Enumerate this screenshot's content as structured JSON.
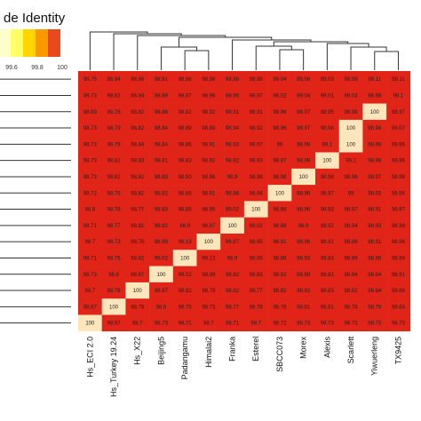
{
  "legend": {
    "title": "de Identity",
    "ticks": [
      "99.6",
      "99.8",
      "100"
    ],
    "colors": [
      "#ffffcc",
      "#ffff66",
      "#ffd500",
      "#f79a00",
      "#e84a1c"
    ]
  },
  "colors": {
    "cell_low": "#e02418",
    "cell_high": "#fde6bb",
    "tree": "#333333",
    "row_line": "#333333"
  },
  "chart_data": {
    "type": "heatmap",
    "title": "",
    "legend_title": "de Identity",
    "color_scale_ticks": [
      99.6,
      99.8,
      100
    ],
    "columns": [
      "Hs_ECI 2.0",
      "Hs_Turkey 19.24",
      "Hs_X22",
      "Beijing5",
      "Padangamu",
      "Himalai2",
      "Franka",
      "Esterel",
      "SBCC073",
      "Morex",
      "Alexis",
      "Scarlett",
      "Yiwuerleng",
      "TX9425"
    ],
    "rows": [
      [
        98.75,
        98.84,
        98.86,
        98.91,
        98.86,
        98.98,
        98.98,
        98.99,
        99.04,
        99.06,
        99.03,
        99.09,
        99.11,
        99.11
      ],
      [
        98.73,
        98.82,
        98.84,
        98.89,
        98.87,
        98.96,
        98.96,
        98.97,
        99.02,
        99.04,
        99.01,
        99.03,
        98.98,
        99.1
      ],
      [
        98.69,
        98.78,
        98.82,
        98.86,
        98.82,
        98.92,
        98.91,
        98.91,
        98.96,
        98.97,
        98.95,
        98.98,
        100,
        98.97
      ],
      [
        98.73,
        98.79,
        98.82,
        98.84,
        98.89,
        98.88,
        98.94,
        98.92,
        98.96,
        98.97,
        98.98,
        100,
        98.98,
        99.07
      ],
      [
        98.73,
        98.79,
        98.84,
        98.84,
        98.86,
        98.91,
        98.93,
        98.97,
        99.0,
        98.98,
        99.1,
        100,
        98.98,
        98.96
      ],
      [
        98.73,
        98.81,
        98.83,
        98.81,
        98.83,
        98.92,
        98.92,
        98.93,
        98.97,
        98.98,
        100,
        99.1,
        98.98,
        98.96
      ],
      [
        98.73,
        98.81,
        98.82,
        98.89,
        98.93,
        98.96,
        98.9,
        98.98,
        98.96,
        100,
        98.98,
        98.96,
        98.97,
        98.98
      ],
      [
        98.72,
        98.76,
        98.82,
        98.82,
        98.88,
        98.91,
        98.88,
        98.96,
        100,
        98.96,
        98.97,
        99.0,
        98.93,
        98.96
      ],
      [
        98.8,
        98.78,
        98.77,
        98.83,
        98.85,
        98.95,
        99.02,
        100,
        98.98,
        98.96,
        98.93,
        98.97,
        98.91,
        98.97
      ],
      [
        98.71,
        98.77,
        98.82,
        98.82,
        98.9,
        98.87,
        100,
        99.02,
        98.88,
        98.9,
        98.92,
        98.94,
        98.93,
        98.98
      ],
      [
        98.7,
        98.73,
        98.78,
        98.99,
        99.13,
        100,
        98.87,
        98.95,
        98.91,
        98.96,
        98.92,
        98.88,
        98.91,
        98.96
      ],
      [
        98.71,
        98.75,
        98.82,
        99.02,
        100,
        99.13,
        98.9,
        98.85,
        98.88,
        98.93,
        98.83,
        98.89,
        98.86,
        98.89
      ],
      [
        98.73,
        98.8,
        98.87,
        100,
        99.02,
        98.99,
        98.82,
        98.83,
        98.82,
        98.89,
        98.81,
        98.84,
        98.84,
        98.91
      ],
      [
        98.7,
        98.78,
        100,
        98.87,
        98.82,
        98.78,
        98.82,
        98.77,
        98.82,
        98.83,
        98.83,
        98.82,
        98.84,
        98.86
      ],
      [
        98.67,
        100,
        98.78,
        98.8,
        98.75,
        98.73,
        98.77,
        98.78,
        98.76,
        98.81,
        98.81,
        98.78,
        98.79,
        98.84
      ],
      [
        100,
        98.67,
        98.7,
        98.73,
        98.71,
        98.7,
        98.71,
        98.7,
        98.72,
        98.73,
        98.73,
        98.73,
        98.73,
        98.75
      ]
    ]
  }
}
